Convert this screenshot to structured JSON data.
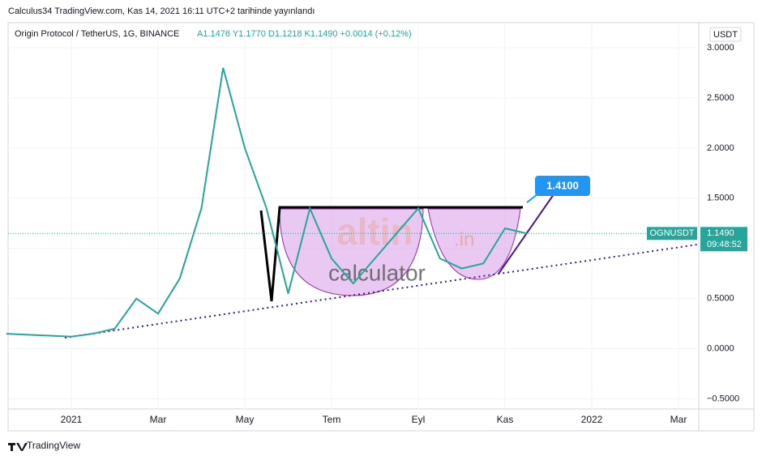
{
  "published": "Calculus34 TradingView.com, Kas 14, 2021 16:11 UTC+2 tarihinde yayınlandı",
  "footer": "TradingView",
  "chart_data": {
    "type": "line",
    "title": "Origin Protocol / TetherUS, 1G, BINANCE",
    "ohlc": "A1.1476  Y1.1770  D1.1218  K1.1490  +0.0014 (+0.12%)",
    "currency": "USDT",
    "watermark": [
      "altin",
      ".in",
      "calculator"
    ],
    "annotation": "1.4100",
    "last_price": {
      "symbol": "OGNUSDT",
      "value": 1.149,
      "label": "1.1490",
      "countdown": "09:48:52"
    },
    "categories": [
      null,
      null,
      null,
      "2021",
      null,
      null,
      null,
      "Mar",
      null,
      null,
      null,
      "May",
      null,
      null,
      null,
      "Tem",
      null,
      null,
      null,
      "Eyl",
      null,
      null,
      null,
      "Kas",
      null,
      null,
      null,
      "2022",
      null,
      null,
      null,
      "Mar",
      null
    ],
    "series": [
      {
        "name": "OGNUSDT",
        "color": "#26a69a",
        "values": [
          0.15,
          0.14,
          0.13,
          0.12,
          0.15,
          0.2,
          0.5,
          0.35,
          0.7,
          1.4,
          2.8,
          2.0,
          1.4,
          0.55,
          1.4,
          0.9,
          0.65,
          0.9,
          1.15,
          1.4,
          0.9,
          0.8,
          0.85,
          1.2,
          1.149,
          null,
          null,
          null,
          null,
          null,
          null,
          null,
          null
        ]
      }
    ],
    "ylim": [
      -0.6,
      3.25
    ],
    "yticks": [
      {
        "value": -0.5,
        "label": "−0.5000"
      },
      {
        "value": 0,
        "label": "0.0000"
      },
      {
        "value": 0.5,
        "label": "0.5000"
      },
      {
        "value": 1,
        "label": "1.0000"
      },
      {
        "value": 1.5,
        "label": "1.5000"
      },
      {
        "value": 2,
        "label": "2.0000"
      },
      {
        "value": 2.5,
        "label": "2.5000"
      },
      {
        "value": 3,
        "label": "3.0000"
      }
    ],
    "grid": true
  }
}
